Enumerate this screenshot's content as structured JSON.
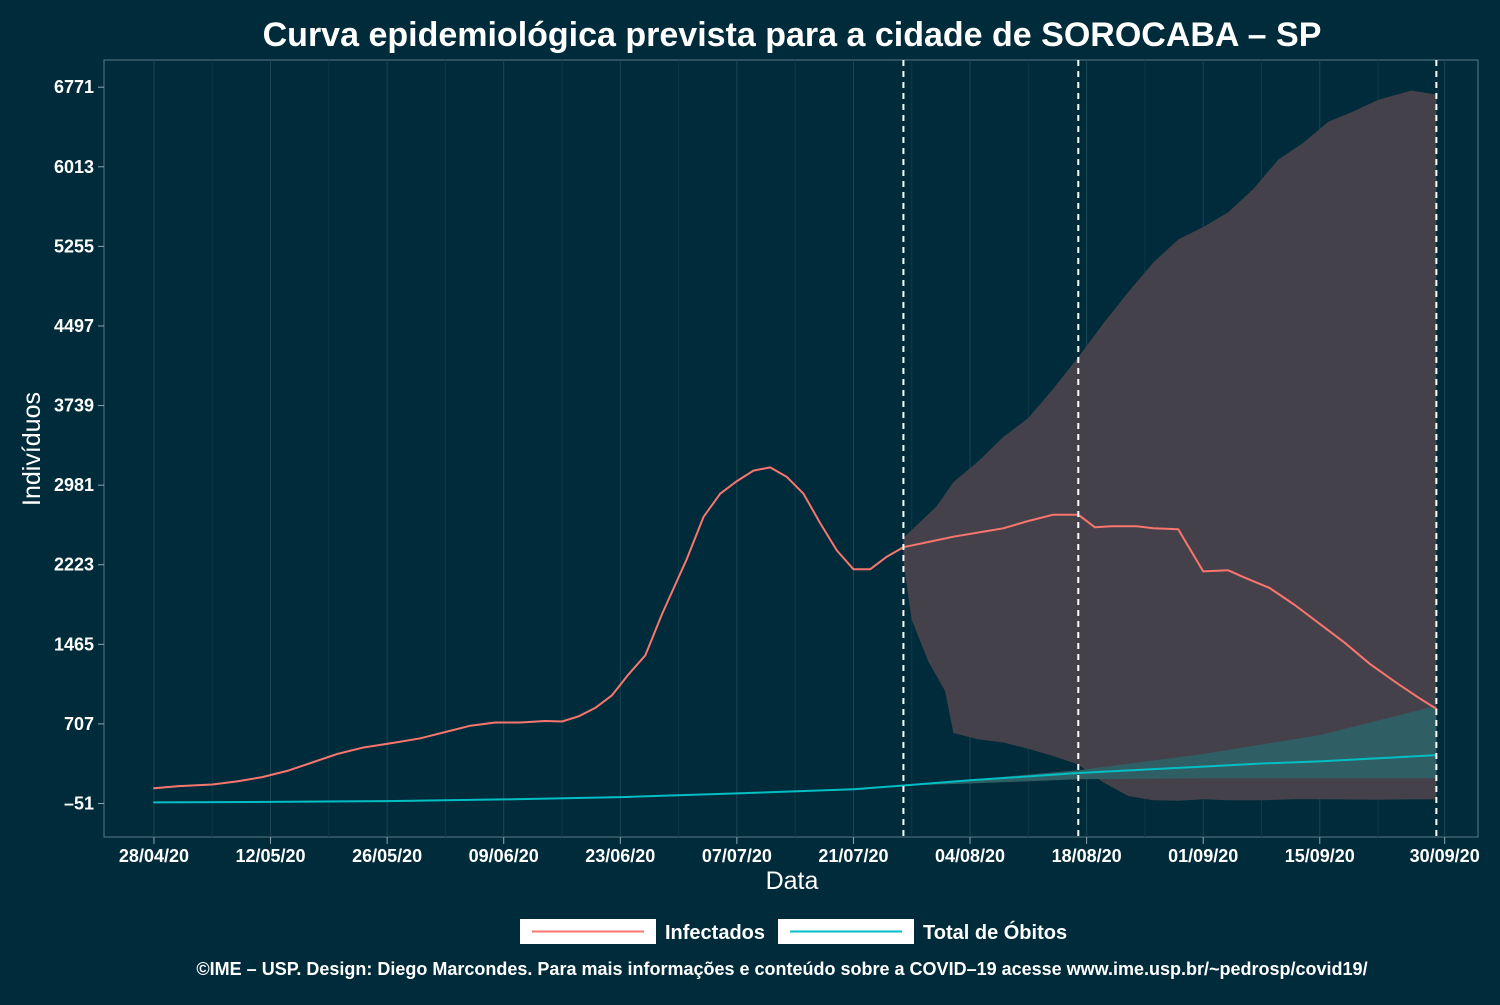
{
  "chart_data": {
    "type": "line",
    "title": "Curva epidemiológica prevista para a cidade de SOROCABA – SP",
    "xlabel": "Data",
    "ylabel": "Indivíduos",
    "x_ticks": [
      "28/04/20",
      "12/05/20",
      "26/05/20",
      "09/06/20",
      "23/06/20",
      "07/07/20",
      "21/07/20",
      "04/08/20",
      "18/08/20",
      "01/09/20",
      "15/09/20",
      "30/09/20"
    ],
    "y_ticks": [
      -51,
      707,
      1465,
      2223,
      2981,
      3739,
      4497,
      5255,
      6013,
      6771
    ],
    "ylim": [
      -370,
      7030
    ],
    "xlim": [
      "2020-04-22",
      "2020-10-04"
    ],
    "grid": true,
    "legend_position": "bottom",
    "vertical_lines": [
      "2020-07-27",
      "2020-08-17",
      "2020-09-29"
    ],
    "series": [
      {
        "name": "Infectados",
        "color": "#f8766d",
        "points": [
          [
            "2020-04-28",
            95
          ],
          [
            "2020-05-01",
            115
          ],
          [
            "2020-05-05",
            130
          ],
          [
            "2020-05-08",
            160
          ],
          [
            "2020-05-11",
            200
          ],
          [
            "2020-05-14",
            260
          ],
          [
            "2020-05-17",
            340
          ],
          [
            "2020-05-20",
            420
          ],
          [
            "2020-05-23",
            480
          ],
          [
            "2020-05-27",
            530
          ],
          [
            "2020-05-30",
            570
          ],
          [
            "2020-06-02",
            630
          ],
          [
            "2020-06-05",
            690
          ],
          [
            "2020-06-08",
            720
          ],
          [
            "2020-06-11",
            720
          ],
          [
            "2020-06-14",
            735
          ],
          [
            "2020-06-16",
            730
          ],
          [
            "2020-06-18",
            780
          ],
          [
            "2020-06-20",
            860
          ],
          [
            "2020-06-22",
            980
          ],
          [
            "2020-06-24",
            1180
          ],
          [
            "2020-06-26",
            1360
          ],
          [
            "2020-06-28",
            1750
          ],
          [
            "2020-07-01",
            2280
          ],
          [
            "2020-07-03",
            2680
          ],
          [
            "2020-07-05",
            2900
          ],
          [
            "2020-07-07",
            3020
          ],
          [
            "2020-07-09",
            3120
          ],
          [
            "2020-07-11",
            3150
          ],
          [
            "2020-07-13",
            3060
          ],
          [
            "2020-07-15",
            2900
          ],
          [
            "2020-07-17",
            2620
          ],
          [
            "2020-07-19",
            2360
          ],
          [
            "2020-07-21",
            2180
          ],
          [
            "2020-07-23",
            2180
          ],
          [
            "2020-07-25",
            2300
          ],
          [
            "2020-07-27",
            2390
          ],
          [
            "2020-07-30",
            2440
          ],
          [
            "2020-08-02",
            2490
          ],
          [
            "2020-08-05",
            2530
          ],
          [
            "2020-08-08",
            2570
          ],
          [
            "2020-08-11",
            2640
          ],
          [
            "2020-08-14",
            2700
          ],
          [
            "2020-08-17",
            2700
          ],
          [
            "2020-08-19",
            2580
          ],
          [
            "2020-08-21",
            2590
          ],
          [
            "2020-08-24",
            2590
          ],
          [
            "2020-08-26",
            2570
          ],
          [
            "2020-08-29",
            2560
          ],
          [
            "2020-09-01",
            2160
          ],
          [
            "2020-09-04",
            2170
          ],
          [
            "2020-09-06",
            2100
          ],
          [
            "2020-09-09",
            2000
          ],
          [
            "2020-09-12",
            1840
          ],
          [
            "2020-09-15",
            1660
          ],
          [
            "2020-09-18",
            1480
          ],
          [
            "2020-09-21",
            1280
          ],
          [
            "2020-09-24",
            1110
          ],
          [
            "2020-09-27",
            950
          ],
          [
            "2020-09-29",
            850
          ]
        ]
      },
      {
        "name": "Total de Óbitos",
        "color": "#00bfc4",
        "points": [
          [
            "2020-04-28",
            -40
          ],
          [
            "2020-05-12",
            -36
          ],
          [
            "2020-05-26",
            -28
          ],
          [
            "2020-06-09",
            -12
          ],
          [
            "2020-06-23",
            10
          ],
          [
            "2020-07-07",
            45
          ],
          [
            "2020-07-21",
            85
          ],
          [
            "2020-07-27",
            120
          ],
          [
            "2020-08-04",
            170
          ],
          [
            "2020-08-17",
            240
          ],
          [
            "2020-09-01",
            300
          ],
          [
            "2020-09-08",
            330
          ],
          [
            "2020-09-15",
            350
          ],
          [
            "2020-09-22",
            380
          ],
          [
            "2020-09-29",
            410
          ]
        ]
      }
    ],
    "bands": [
      {
        "color": "#45414a",
        "upper": [
          [
            "2020-07-27",
            2480
          ],
          [
            "2020-07-31",
            2780
          ],
          [
            "2020-08-02",
            3010
          ],
          [
            "2020-08-05",
            3210
          ],
          [
            "2020-08-08",
            3440
          ],
          [
            "2020-08-11",
            3620
          ],
          [
            "2020-08-14",
            3900
          ],
          [
            "2020-08-17",
            4200
          ],
          [
            "2020-08-20",
            4520
          ],
          [
            "2020-08-23",
            4820
          ],
          [
            "2020-08-26",
            5100
          ],
          [
            "2020-08-29",
            5320
          ],
          [
            "2020-09-01",
            5440
          ],
          [
            "2020-09-04",
            5580
          ],
          [
            "2020-09-07",
            5800
          ],
          [
            "2020-09-10",
            6080
          ],
          [
            "2020-09-13",
            6240
          ],
          [
            "2020-09-16",
            6440
          ],
          [
            "2020-09-19",
            6540
          ],
          [
            "2020-09-22",
            6650
          ],
          [
            "2020-09-26",
            6740
          ],
          [
            "2020-09-29",
            6700
          ]
        ],
        "lower": [
          [
            "2020-07-27",
            2250
          ],
          [
            "2020-07-28",
            1700
          ],
          [
            "2020-07-30",
            1300
          ],
          [
            "2020-08-01",
            1020
          ],
          [
            "2020-08-02",
            620
          ],
          [
            "2020-08-05",
            560
          ],
          [
            "2020-08-08",
            530
          ],
          [
            "2020-08-11",
            470
          ],
          [
            "2020-08-14",
            400
          ],
          [
            "2020-08-17",
            320
          ],
          [
            "2020-08-20",
            150
          ],
          [
            "2020-08-23",
            20
          ],
          [
            "2020-08-26",
            -20
          ],
          [
            "2020-08-29",
            -25
          ],
          [
            "2020-09-01",
            -10
          ],
          [
            "2020-09-04",
            -20
          ],
          [
            "2020-09-08",
            -20
          ],
          [
            "2020-09-12",
            -10
          ],
          [
            "2020-09-15",
            -10
          ],
          [
            "2020-09-22",
            -15
          ],
          [
            "2020-09-29",
            -10
          ]
        ]
      },
      {
        "color": "#2f5f65",
        "upper": [
          [
            "2020-07-27",
            120
          ],
          [
            "2020-08-04",
            175
          ],
          [
            "2020-08-17",
            265
          ],
          [
            "2020-09-01",
            420
          ],
          [
            "2020-09-15",
            600
          ],
          [
            "2020-09-29",
            880
          ]
        ],
        "lower": [
          [
            "2020-07-27",
            120
          ],
          [
            "2020-08-04",
            140
          ],
          [
            "2020-08-17",
            180
          ],
          [
            "2020-09-01",
            190
          ],
          [
            "2020-09-15",
            190
          ],
          [
            "2020-09-29",
            190
          ]
        ]
      }
    ]
  },
  "footer": "©IME – USP. Design: Diego Marcondes. Para mais informações e conteúdo sobre a COVID–19 acesse www.ime.usp.br/~pedrosp/covid19/"
}
